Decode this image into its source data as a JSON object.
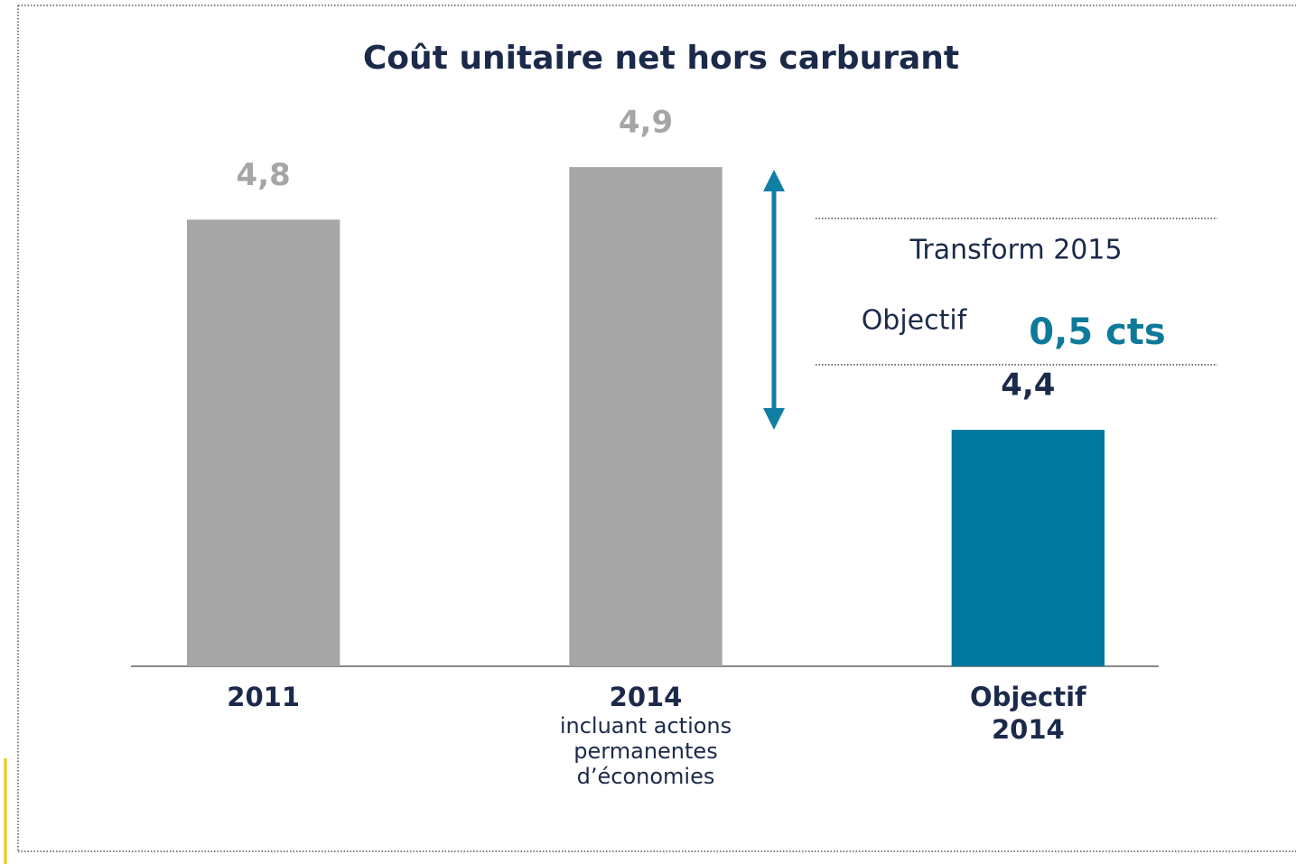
{
  "chart_data": {
    "type": "bar",
    "title": "Coût unitaire net hors carburant",
    "categories": [
      "2011",
      "2014",
      "Objectif 2014"
    ],
    "category_notes": [
      null,
      "incluant actions permanentes d’économies",
      null
    ],
    "values": [
      4.8,
      4.9,
      4.4
    ],
    "value_labels": [
      "4,8",
      "4,9",
      "4,4"
    ],
    "colors": [
      "#a6a6a6",
      "#a6a6a6",
      "#00779e"
    ],
    "ylim": [
      3.95,
      4.95
    ],
    "annotations": {
      "title": "Transform 2015",
      "label": "Objectif",
      "value": "0,5 cts"
    }
  }
}
